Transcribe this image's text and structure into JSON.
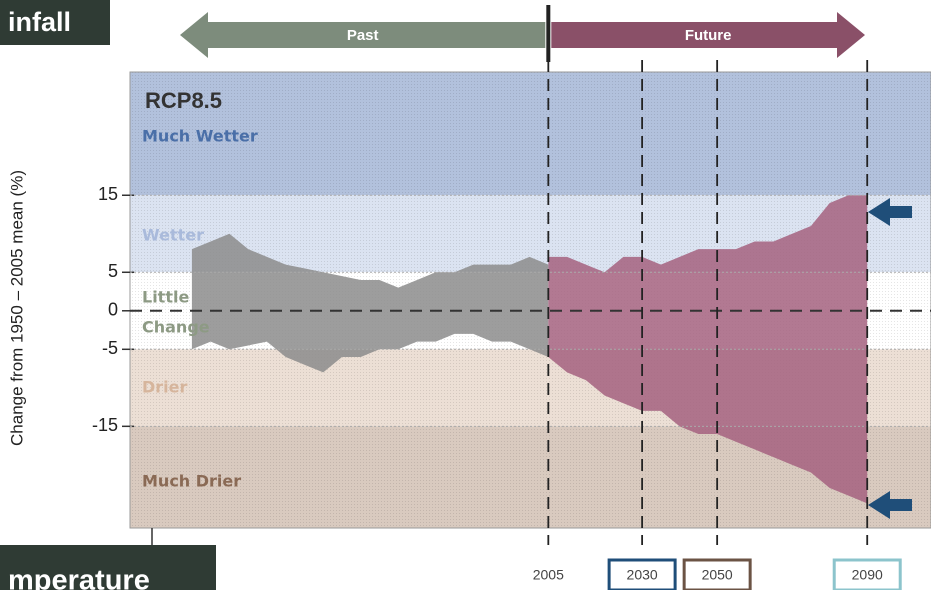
{
  "header": {
    "left_tab": "infall",
    "bottom_tab": "mperature"
  },
  "chart_data": {
    "type": "range_area",
    "title": "RCP8.5",
    "ylabel": "Change from 1950 – 2005 mean (%)",
    "xlim": [
      1893.5,
      2107
    ],
    "ylim": [
      -28.2,
      31
    ],
    "yticks": [
      15,
      5,
      0,
      -5,
      -15
    ],
    "xticks": [
      2005,
      2030,
      2050,
      2090
    ],
    "xtick_box_colors": [
      null,
      "#1f4e79",
      "#6b5344",
      "#8cc4cc"
    ],
    "periods": [
      {
        "label": "Past",
        "color": "#7d8c7c"
      },
      {
        "label": "Future",
        "color": "#8a5068"
      }
    ],
    "bands": [
      {
        "label_lines": [
          "Much Wetter"
        ],
        "from": 15,
        "to": 31,
        "color": "#b2c1dc",
        "text_color": "#4a6fa8"
      },
      {
        "label_lines": [
          "Wetter"
        ],
        "from": 5,
        "to": 15,
        "color": "#dbe3f1",
        "text_color": "#a9badb"
      },
      {
        "label_lines": [
          "Little",
          "Change"
        ],
        "from": -5,
        "to": 5,
        "color": "#ffffff",
        "text_color": "#8d9a84"
      },
      {
        "label_lines": [
          "Drier"
        ],
        "from": -15,
        "to": -5,
        "color": "#ecdfd5",
        "text_color": "#d6b59c"
      },
      {
        "label_lines": [
          "Much Drier"
        ],
        "from": -28.2,
        "to": -15,
        "color": "#d9cabf",
        "text_color": "#8a6a55"
      }
    ],
    "series": [
      {
        "color": "#8c8c8c",
        "x": [
          1910,
          1915,
          1920,
          1925,
          1930,
          1935,
          1940,
          1945,
          1950,
          1955,
          1960,
          1965,
          1970,
          1975,
          1980,
          1985,
          1990,
          1995,
          2000,
          2005
        ],
        "upper": [
          8,
          9,
          10,
          8,
          7,
          6,
          5.5,
          5,
          4.5,
          4,
          4,
          3,
          4,
          5,
          5,
          6,
          6,
          6,
          7,
          6
        ],
        "lower": [
          -5,
          -4,
          -5,
          -4.5,
          -4,
          -6,
          -7,
          -8,
          -6,
          -6,
          -5,
          -5,
          -4,
          -4,
          -3,
          -3,
          -4,
          -4,
          -5,
          -6
        ]
      },
      {
        "color": "#a5617f",
        "x": [
          2005,
          2010,
          2015,
          2020,
          2025,
          2030,
          2035,
          2040,
          2045,
          2050,
          2055,
          2060,
          2065,
          2070,
          2075,
          2080,
          2085,
          2090
        ],
        "upper": [
          7,
          7,
          6,
          5,
          7,
          7,
          6,
          7,
          8,
          8,
          8,
          9,
          9,
          10,
          11,
          14,
          15,
          15
        ],
        "lower": [
          -6,
          -8,
          -9,
          -11,
          -12,
          -13,
          -13,
          -15,
          -16,
          -16,
          -17,
          -18,
          -19,
          -20,
          -21,
          -23,
          -24,
          -25
        ]
      }
    ]
  }
}
